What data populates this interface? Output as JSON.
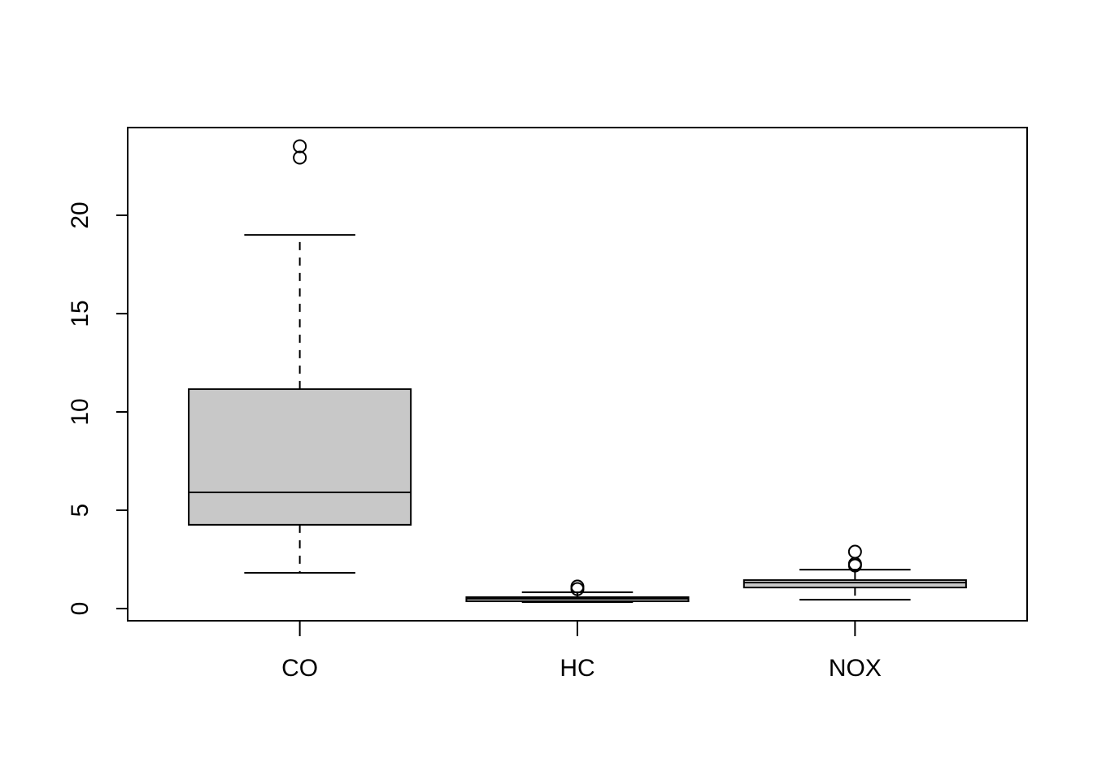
{
  "chart_data": {
    "type": "boxplot",
    "categories": [
      "CO",
      "HC",
      "NOX"
    ],
    "boxes": [
      {
        "whislo": 1.82,
        "q1": 4.26,
        "median": 5.91,
        "q3": 11.16,
        "whishi": 19.0,
        "outliers": [
          23.51,
          22.93
        ]
      },
      {
        "whislo": 0.33,
        "q1": 0.37,
        "median": 0.5,
        "q3": 0.58,
        "whishi": 0.83,
        "outliers": [
          1.12,
          0.99
        ]
      },
      {
        "whislo": 0.45,
        "q1": 1.07,
        "median": 1.32,
        "q3": 1.45,
        "whishi": 1.98,
        "outliers": [
          2.89,
          2.27,
          2.19
        ]
      }
    ],
    "color": "#c8c8c8",
    "ylim": [
      -0.62,
      24.46
    ],
    "yticks": [
      0,
      5,
      10,
      15,
      20
    ]
  }
}
